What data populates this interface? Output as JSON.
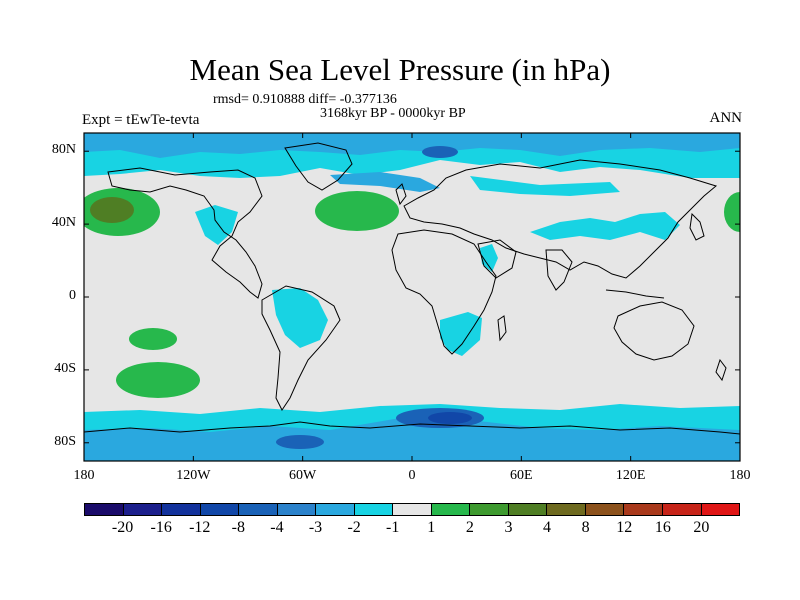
{
  "title": "Mean Sea Level Pressure (in hPa)",
  "stats": "rmsd= 0.910888 diff= -0.377136",
  "period": "3168kyr BP - 0000kyr BP",
  "experiment": "Expt = tEwTe-tevta",
  "season": "ANN",
  "lat_ticks": [
    "80N",
    "40N",
    "0",
    "40S",
    "80S"
  ],
  "lat_values": [
    80,
    40,
    0,
    -40,
    -80
  ],
  "lon_ticks": [
    "180",
    "120W",
    "60W",
    "0",
    "60E",
    "120E",
    "180"
  ],
  "lon_values": [
    -180,
    -120,
    -60,
    0,
    60,
    120,
    180
  ],
  "colorbar": {
    "labels": [
      "-20",
      "-16",
      "-12",
      "-8",
      "-4",
      "-3",
      "-2",
      "-1",
      "1",
      "2",
      "3",
      "4",
      "8",
      "12",
      "16",
      "20"
    ],
    "colors": [
      "#1a0b6a",
      "#1c1f8c",
      "#12329c",
      "#1147a8",
      "#1a62b7",
      "#2b82cb",
      "#2aa8df",
      "#18d3e3",
      "#e6e6e6",
      "#27b84c",
      "#3e9a2f",
      "#4f7e24",
      "#6e6a1f",
      "#8c521c",
      "#a9391b",
      "#c72419",
      "#e01616"
    ]
  },
  "map_colors": {
    "ocean_bg": "#e6e6e6",
    "weak_neg": "#18d3e3",
    "neg": "#2aa8df",
    "stronger_neg": "#1a62b7",
    "strong_neg": "#1147a8",
    "weak_pos": "#27b84c",
    "pos": "#4f7e24"
  }
}
